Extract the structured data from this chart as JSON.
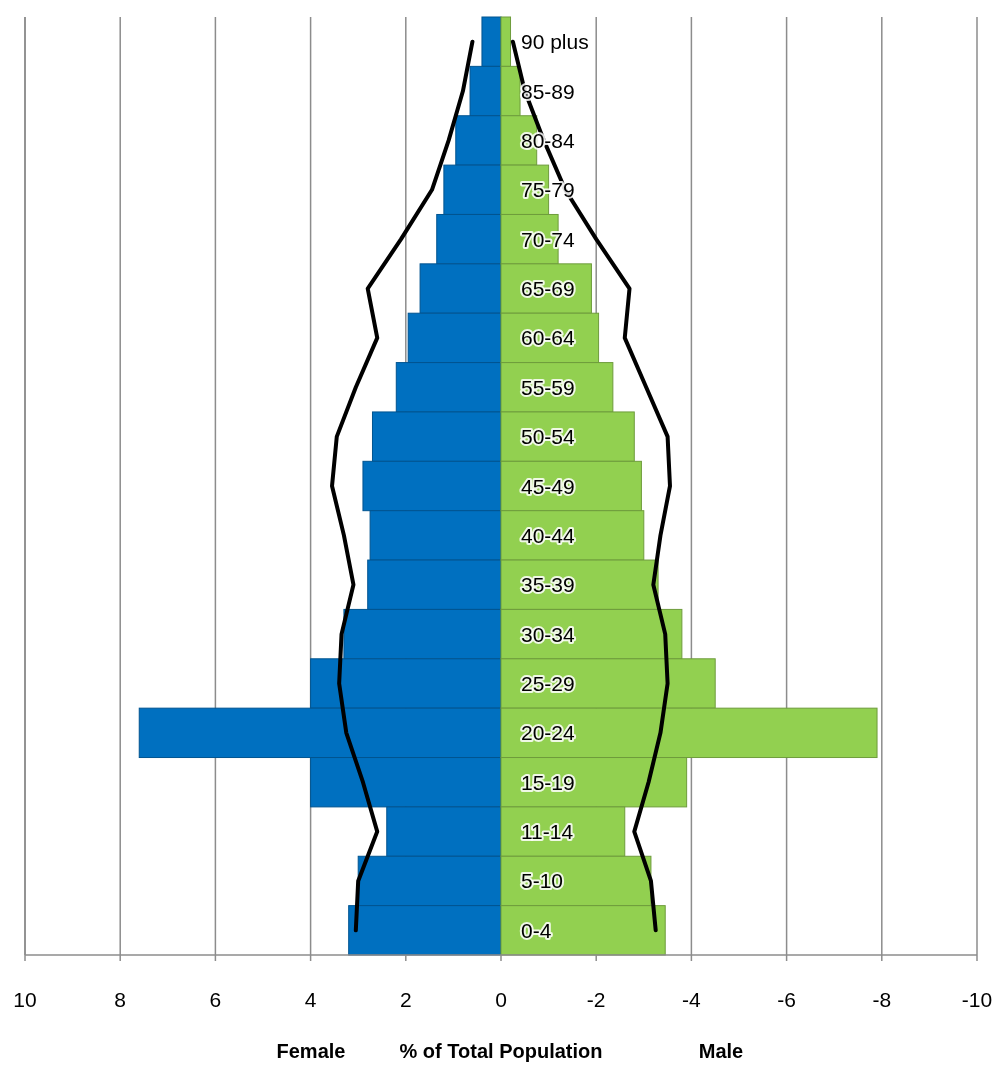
{
  "chart_data": {
    "type": "bar",
    "orientation": "horizontal",
    "stacked": true,
    "xlabel": "% of Total Population",
    "annotations": [
      "Female",
      "Male"
    ],
    "categories": [
      "90 plus",
      "85-89",
      "80-84",
      "75-79",
      "70-74",
      "65-69",
      "60-64",
      "55-59",
      "50-54",
      "45-49",
      "40-44",
      "35-39",
      "30-34",
      "25-29",
      "20-24",
      "15-19",
      "11-14",
      "5-10",
      "0-4"
    ],
    "series": [
      {
        "color": "#0070c0",
        "values": [
          0.4,
          0.65,
          0.95,
          1.2,
          1.35,
          1.7,
          1.95,
          2.2,
          2.7,
          2.9,
          2.75,
          2.8,
          3.3,
          4.0,
          7.6,
          4.0,
          2.4,
          3.0,
          3.2
        ]
      },
      {
        "color": "#92d050",
        "values": [
          -0.2,
          -0.4,
          -0.75,
          -1.0,
          -1.2,
          -1.9,
          -2.05,
          -2.35,
          -2.8,
          -2.95,
          -3.0,
          -3.3,
          -3.8,
          -4.5,
          -7.9,
          -3.9,
          -2.6,
          -3.15,
          -3.45
        ]
      },
      {
        "type": "line",
        "color": "#000000",
        "values": [
          0.6,
          0.8,
          1.1,
          1.45,
          2.1,
          2.8,
          2.6,
          3.05,
          3.45,
          3.55,
          3.3,
          3.1,
          3.35,
          3.4,
          3.25,
          2.9,
          2.6,
          3.0,
          3.05
        ]
      },
      {
        "type": "line",
        "color": "#000000",
        "values": [
          -0.25,
          -0.5,
          -0.9,
          -1.35,
          -2.0,
          -2.7,
          -2.6,
          -3.05,
          -3.5,
          -3.55,
          -3.35,
          -3.2,
          -3.45,
          -3.5,
          -3.35,
          -3.1,
          -2.8,
          -3.15,
          -3.25
        ]
      }
    ],
    "xlim": [
      10,
      -10
    ],
    "xticks": [
      10,
      8,
      6,
      4,
      2,
      0,
      -2,
      -4,
      -6,
      -8,
      -10
    ],
    "grid": "x",
    "marker": "none",
    "line_style": "solid"
  }
}
